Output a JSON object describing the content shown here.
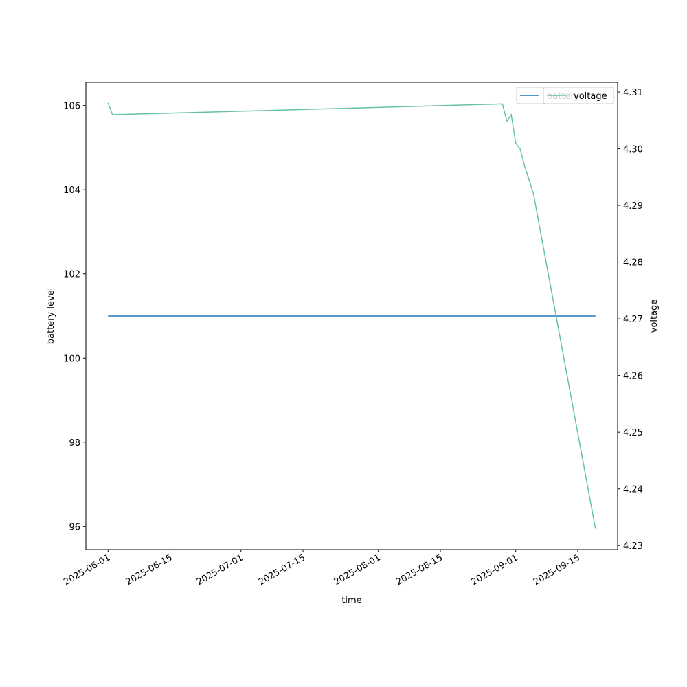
{
  "chart_data": {
    "type": "line",
    "x_label": "time",
    "y_label": "battery level",
    "y2_label": "voltage",
    "xlim": [
      "2025-05-27",
      "2025-09-24"
    ],
    "xticks": [
      "2025-06-01",
      "2025-06-15",
      "2025-07-01",
      "2025-07-15",
      "2025-08-01",
      "2025-08-15",
      "2025-09-01",
      "2025-09-15"
    ],
    "ylim": [
      95.45,
      106.55
    ],
    "yticks": [
      96,
      98,
      100,
      102,
      104,
      106
    ],
    "y2lim": [
      4.2293,
      4.3117
    ],
    "y2ticks": [
      4.23,
      4.24,
      4.25,
      4.26,
      4.27,
      4.28,
      4.29,
      {
        "value": 4.3,
        "label": "4.30"
      },
      4.31
    ],
    "legend": "upper right",
    "series": [
      {
        "name": "battery",
        "color": "#1f77b4",
        "axis": "y",
        "x": [
          "2025-06-01",
          "2025-09-19"
        ],
        "values": [
          101,
          101
        ]
      },
      {
        "name": "voltage",
        "color": "#66c2a5",
        "axis": "y2",
        "x": [
          "2025-06-01",
          "2025-06-02",
          "2025-08-29",
          "2025-08-30",
          "2025-08-31",
          "2025-09-01",
          "2025-09-02",
          "2025-09-03",
          "2025-09-05",
          "2025-09-19"
        ],
        "values": [
          4.3081,
          4.306,
          4.3079,
          4.3049,
          4.306,
          4.301,
          4.3,
          4.297,
          4.2921,
          4.233
        ]
      }
    ]
  }
}
